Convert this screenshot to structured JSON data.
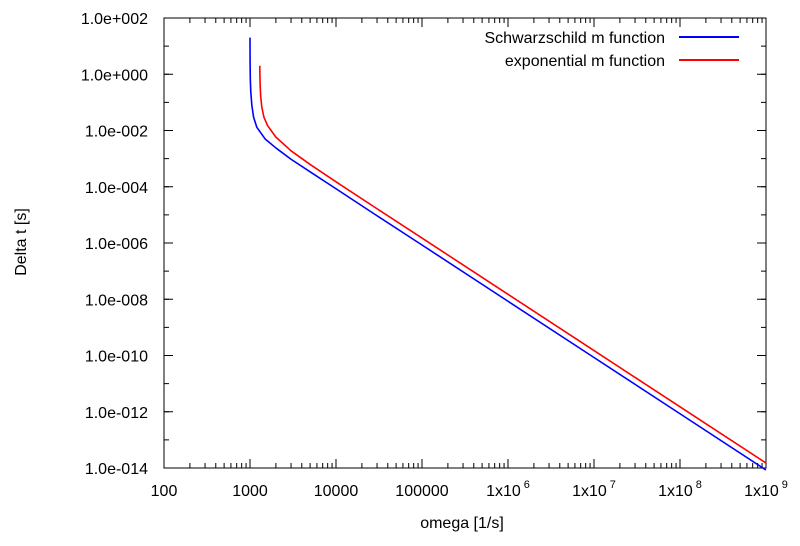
{
  "chart_data": {
    "type": "line",
    "xlabel": "omega [1/s]",
    "ylabel": "Delta t [s]",
    "x_scale": "log",
    "y_scale": "log",
    "xlim": [
      100,
      1000000000
    ],
    "ylim": [
      1e-14,
      100
    ],
    "grid": false,
    "legend_position": "top-right",
    "x_ticks": [
      {
        "value": 100,
        "base": "100",
        "exp": ""
      },
      {
        "value": 1000,
        "base": "1000",
        "exp": ""
      },
      {
        "value": 10000,
        "base": "10000",
        "exp": ""
      },
      {
        "value": 100000,
        "base": "100000",
        "exp": ""
      },
      {
        "value": 1000000,
        "base": "1x10",
        "exp": "6"
      },
      {
        "value": 10000000,
        "base": "1x10",
        "exp": "7"
      },
      {
        "value": 100000000,
        "base": "1x10",
        "exp": "8"
      },
      {
        "value": 1000000000,
        "base": "1x10",
        "exp": "9"
      }
    ],
    "y_ticks": [
      {
        "value": 100,
        "label": "1.0e+002"
      },
      {
        "value": 1,
        "label": "1.0e+000"
      },
      {
        "value": 0.01,
        "label": "1.0e-002"
      },
      {
        "value": 0.0001,
        "label": "1.0e-004"
      },
      {
        "value": 1e-06,
        "label": "1.0e-006"
      },
      {
        "value": 1e-08,
        "label": "1.0e-008"
      },
      {
        "value": 1e-10,
        "label": "1.0e-010"
      },
      {
        "value": 1e-12,
        "label": "1.0e-012"
      },
      {
        "value": 1e-14,
        "label": "1.0e-014"
      }
    ],
    "series": [
      {
        "name": "Schwarzschild m function",
        "color": "#0000ff",
        "x": [
          1000,
          1002,
          1008,
          1020,
          1050,
          1100,
          1200,
          1500,
          2000,
          3000,
          5000,
          10000,
          30000,
          100000,
          1000000,
          10000000,
          100000000,
          1000000000
        ],
        "y": [
          20,
          3,
          0.7,
          0.25,
          0.08,
          0.03,
          0.013,
          0.005,
          0.0024,
          0.00095,
          0.00034,
          8.5e-05,
          9.3e-06,
          8.5e-07,
          8.5e-09,
          8.5e-11,
          8.5e-13,
          8.5e-15
        ]
      },
      {
        "name": "exponential m function",
        "color": "#ff0000",
        "x": [
          1300,
          1302,
          1310,
          1330,
          1370,
          1450,
          1600,
          2000,
          3000,
          5000,
          10000,
          30000,
          100000,
          1000000,
          10000000,
          100000000,
          1000000000
        ],
        "y": [
          2,
          1.1,
          0.45,
          0.17,
          0.07,
          0.03,
          0.015,
          0.0058,
          0.0019,
          0.00062,
          0.00015,
          1.65e-05,
          1.5e-06,
          1.5e-08,
          1.5e-10,
          1.5e-12,
          1.5e-14
        ]
      }
    ]
  }
}
